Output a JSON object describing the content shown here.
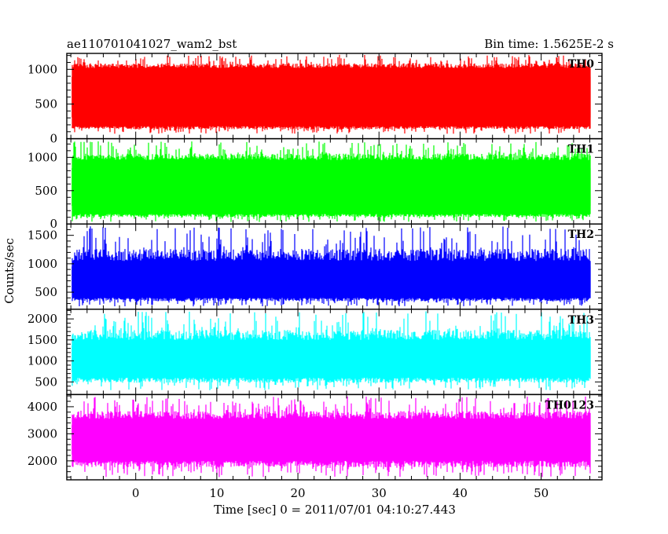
{
  "chart_data": {
    "type": "line",
    "title_left": "ae110701041027_wam2_bst",
    "title_right": "Bin time: 1.5625E-2 s",
    "xlabel": "Time [sec] 0 = 2011/07/01 04:10:27.443",
    "ylabel": "Counts/sec",
    "xlim": [
      -8.5,
      57.5
    ],
    "data_x_range": [
      -7.9,
      56.1
    ],
    "x_ticks": [
      0,
      10,
      20,
      30,
      40,
      50
    ],
    "grid": false,
    "panels": [
      {
        "name": "TH0",
        "color": "#ff0000",
        "ylim": [
          0,
          1230
        ],
        "y_ticks": [
          0,
          500,
          1000
        ],
        "band": [
          180,
          1020
        ],
        "mean": 600,
        "peak_max": 1210,
        "dip_min": 70
      },
      {
        "name": "TH1",
        "color": "#00ff00",
        "ylim": [
          0,
          1280
        ],
        "y_ticks": [
          0,
          500,
          1000
        ],
        "band": [
          150,
          960
        ],
        "mean": 560,
        "peak_max": 1240,
        "dip_min": 30
      },
      {
        "name": "TH2",
        "color": "#0000ff",
        "ylim": [
          200,
          1700
        ],
        "y_ticks": [
          500,
          1000,
          1500
        ],
        "band": [
          400,
          1050
        ],
        "mean": 720,
        "peak_max": 1660,
        "dip_min": 250
      },
      {
        "name": "TH3",
        "color": "#00ffff",
        "ylim": [
          200,
          2230
        ],
        "y_ticks": [
          500,
          1000,
          1500,
          2000
        ],
        "band": [
          600,
          1500
        ],
        "mean": 1050,
        "peak_max": 2180,
        "dip_min": 300
      },
      {
        "name": "TH0123",
        "color": "#ff00ff",
        "ylim": [
          1300,
          4450
        ],
        "y_ticks": [
          2000,
          3000,
          4000
        ],
        "band": [
          2000,
          3550
        ],
        "mean": 2780,
        "peak_max": 4380,
        "dip_min": 1400
      }
    ]
  }
}
